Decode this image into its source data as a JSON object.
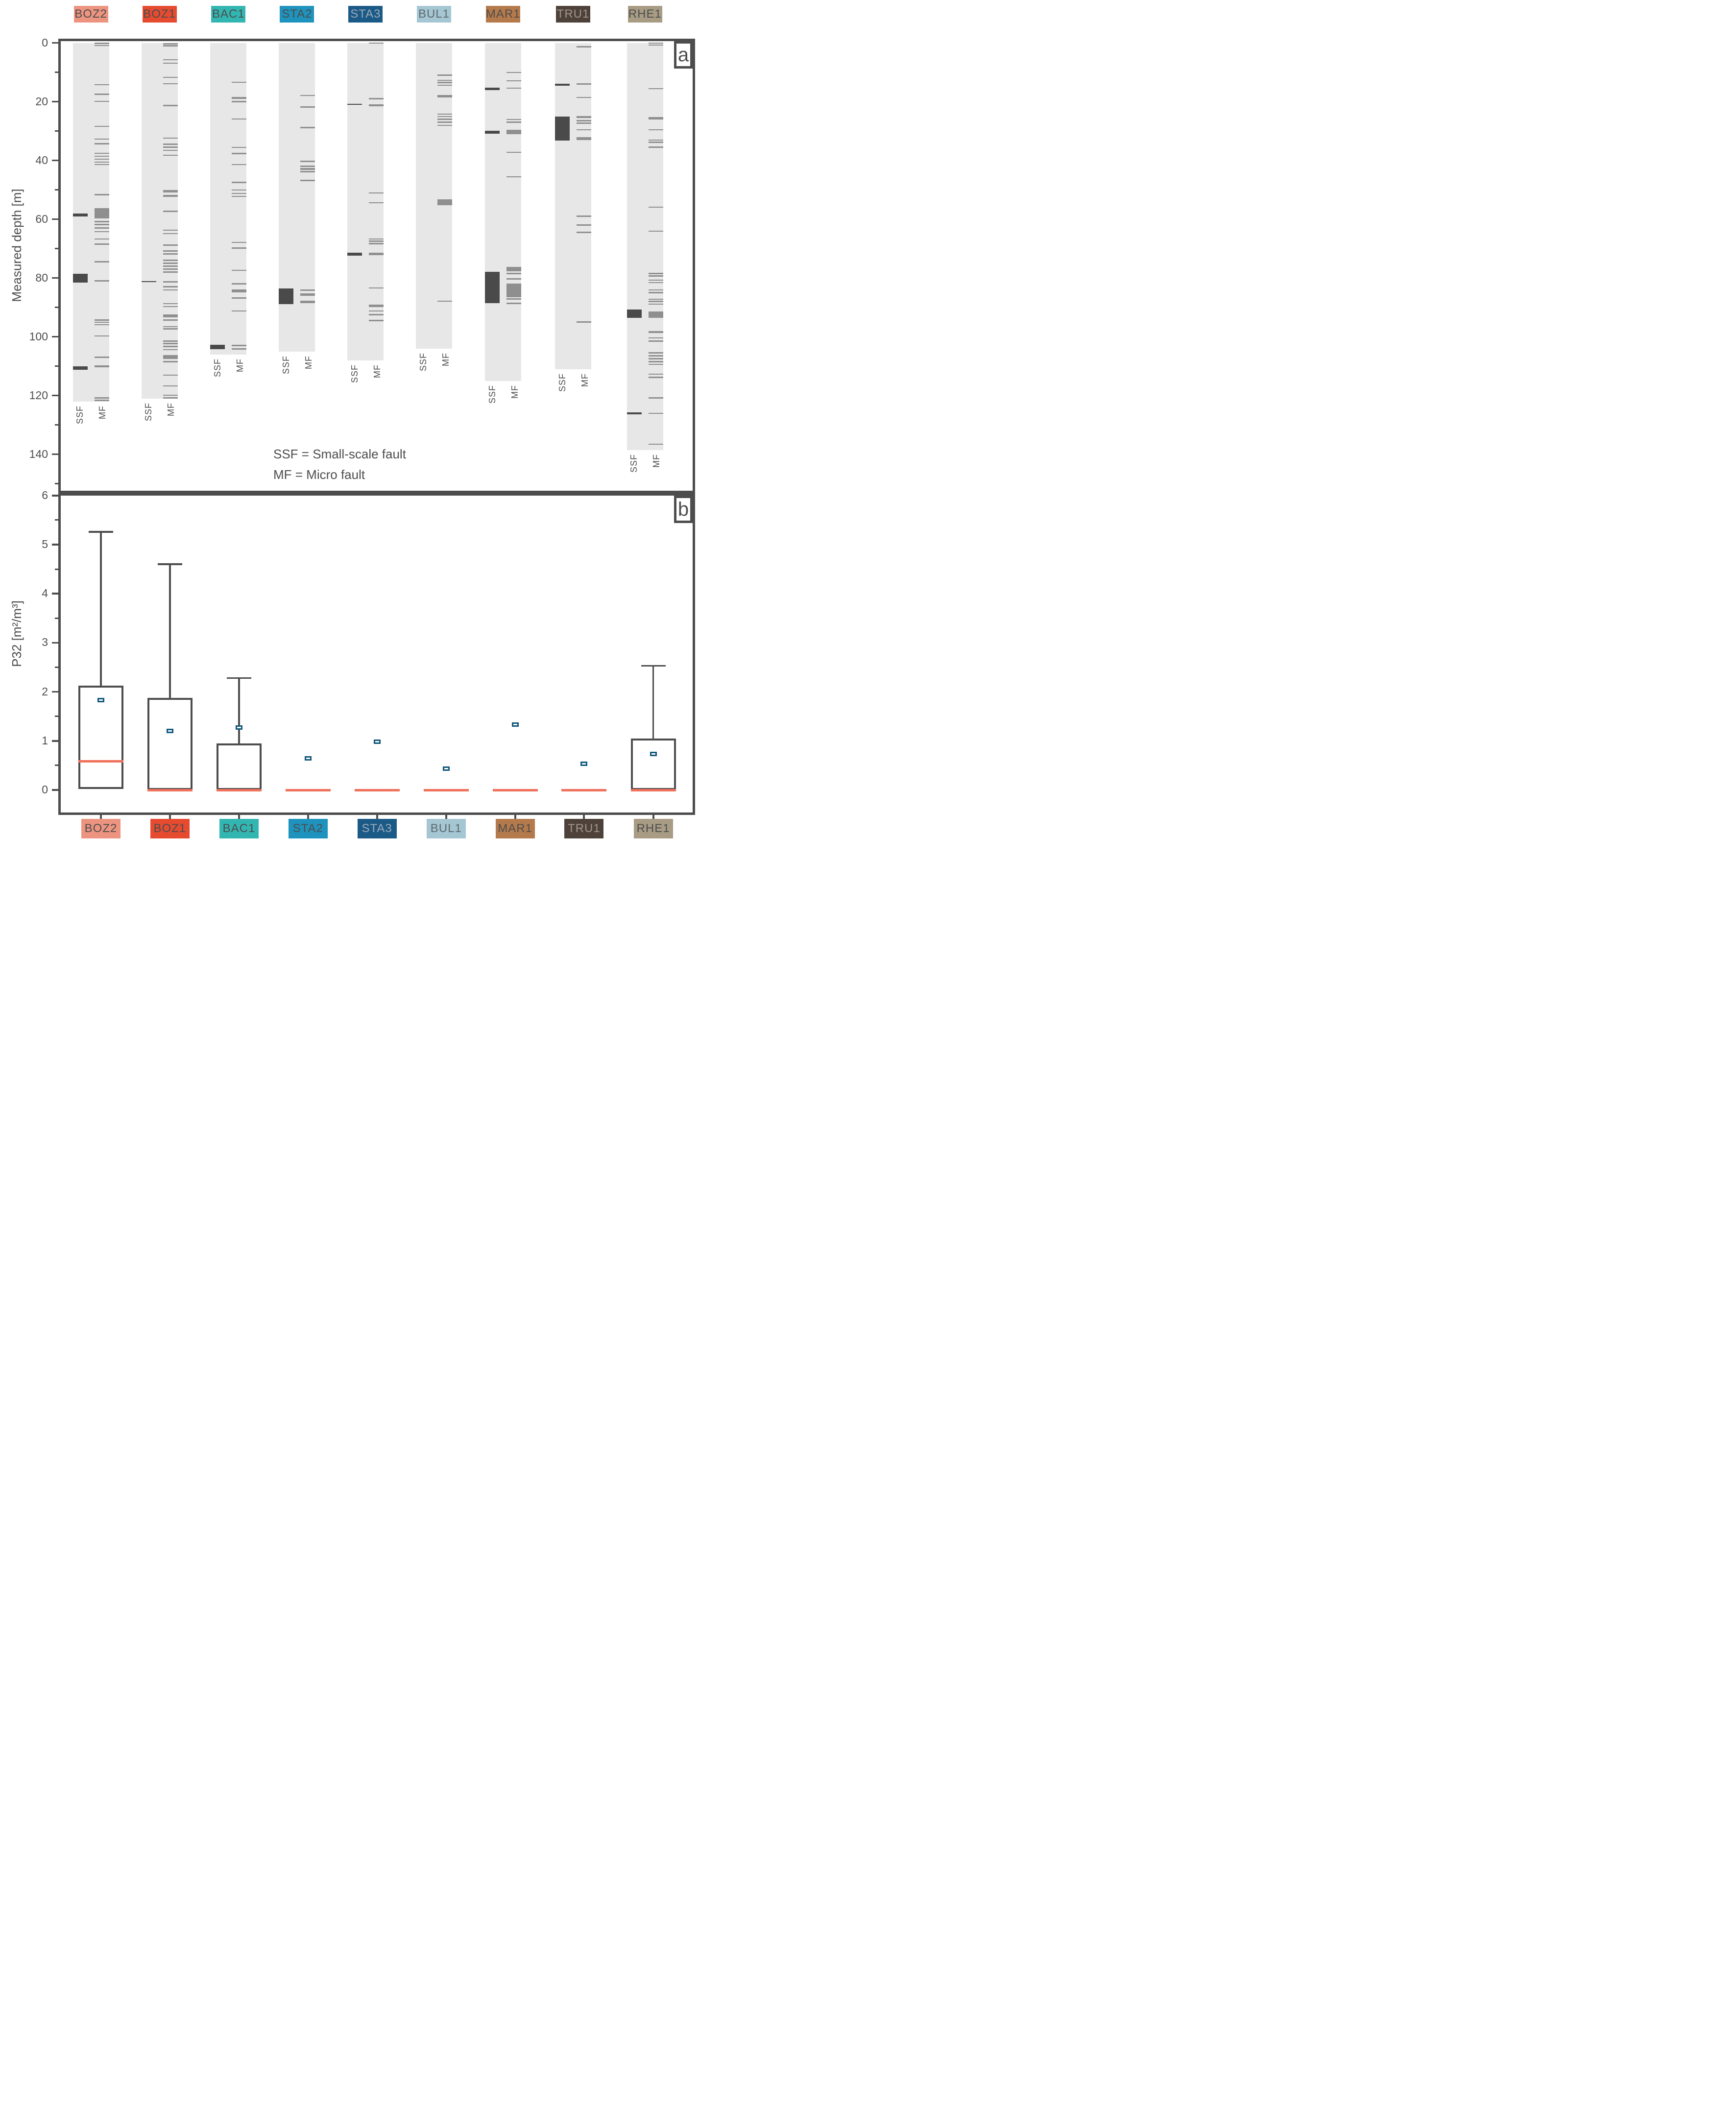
{
  "figure": {
    "background": "#ffffff",
    "text_color": "#4d4d4d",
    "frame_color": "#4d4d4d",
    "strip_color": "#e7e7e7",
    "ssf_mark_color": "#4a4a4a",
    "mf_mark_color": "#8f8f8f",
    "median_color": "#f0715c",
    "mean_marker_color": "#12587c"
  },
  "chart_data": [
    {
      "type": "fault-log",
      "panel_label": "a",
      "ylabel": "Measured depth [m]",
      "ylim": [
        0,
        152
      ],
      "yticks": [
        0,
        20,
        40,
        60,
        80,
        100,
        120,
        140
      ],
      "yticks_minor": [
        10,
        30,
        50,
        70,
        90,
        110,
        130,
        150
      ],
      "column_labels": [
        "SSF",
        "MF"
      ],
      "legend": [
        "SSF = Small-scale fault",
        "MF = Micro fault"
      ],
      "boreholes": [
        {
          "name": "BOZ2",
          "color": "#ED9480",
          "label_text_color": "#4d4d4d",
          "depth_range": [
            0,
            122
          ],
          "ssf": [
            [
              58.5,
              1.0
            ],
            [
              80.0,
              3.0
            ],
            [
              110.6,
              1.2
            ]
          ],
          "mf": [
            [
              0.2,
              0.5
            ],
            [
              0.9,
              0.4
            ],
            [
              14.2,
              0.4
            ],
            [
              17.5,
              0.4
            ],
            [
              19.9,
              0.4
            ],
            [
              28.4,
              0.4
            ],
            [
              32.7,
              0.4
            ],
            [
              34.3,
              0.4
            ],
            [
              37.6,
              0.4
            ],
            [
              38.6,
              0.4
            ],
            [
              39.6,
              0.4
            ],
            [
              40.6,
              0.4
            ],
            [
              41.4,
              0.4
            ],
            [
              51.6,
              0.5
            ],
            [
              58.0,
              3.5
            ],
            [
              60.8,
              0.5
            ],
            [
              61.8,
              0.5
            ],
            [
              62.9,
              0.5
            ],
            [
              64.2,
              0.4
            ],
            [
              66.7,
              0.4
            ],
            [
              68.5,
              0.4
            ],
            [
              74.4,
              0.5
            ],
            [
              81.0,
              0.5
            ],
            [
              94.3,
              0.4
            ],
            [
              95.1,
              0.4
            ],
            [
              95.9,
              0.4
            ],
            [
              99.7,
              0.4
            ],
            [
              107.0,
              0.4
            ],
            [
              110.1,
              0.7
            ],
            [
              120.8,
              0.5
            ],
            [
              121.6,
              0.5
            ]
          ]
        },
        {
          "name": "BOZ1",
          "color": "#E64B30",
          "label_text_color": "#4d4d4d",
          "depth_range": [
            0,
            121
          ],
          "ssf": [
            [
              81.2,
              0.4
            ]
          ],
          "mf": [
            [
              0.3,
              0.6
            ],
            [
              1.0,
              0.4
            ],
            [
              5.7,
              0.4
            ],
            [
              6.9,
              0.4
            ],
            [
              11.7,
              0.4
            ],
            [
              13.9,
              0.4
            ],
            [
              21.3,
              0.4
            ],
            [
              32.4,
              0.4
            ],
            [
              34.4,
              0.5
            ],
            [
              35.5,
              0.4
            ],
            [
              36.6,
              0.4
            ],
            [
              38.2,
              0.4
            ],
            [
              50.5,
              0.8
            ],
            [
              52.1,
              0.7
            ],
            [
              57.3,
              0.4
            ],
            [
              63.7,
              0.4
            ],
            [
              64.9,
              0.4
            ],
            [
              68.8,
              0.4
            ],
            [
              70.8,
              0.4
            ],
            [
              71.8,
              0.4
            ],
            [
              74.0,
              0.6
            ],
            [
              75.0,
              0.6
            ],
            [
              76.0,
              0.6
            ],
            [
              77.0,
              0.6
            ],
            [
              78.0,
              0.4
            ],
            [
              81.3,
              0.4
            ],
            [
              83.0,
              0.4
            ],
            [
              84.1,
              0.4
            ],
            [
              88.7,
              0.4
            ],
            [
              89.7,
              0.4
            ],
            [
              92.9,
              1.1
            ],
            [
              94.3,
              0.6
            ],
            [
              96.6,
              0.4
            ],
            [
              97.3,
              0.4
            ],
            [
              101.4,
              0.5
            ],
            [
              102.3,
              0.4
            ],
            [
              103.3,
              0.4
            ],
            [
              104.4,
              0.4
            ],
            [
              106.9,
              1.2
            ],
            [
              108.5,
              0.6
            ],
            [
              113.1,
              0.4
            ],
            [
              116.7,
              0.4
            ],
            [
              119.9,
              0.4
            ],
            [
              120.8,
              0.4
            ]
          ]
        },
        {
          "name": "BAC1",
          "color": "#32B6B2",
          "label_text_color": "#4d4d4d",
          "depth_range": [
            0,
            106
          ],
          "ssf": [
            [
              103.4,
              1.5
            ]
          ],
          "mf": [
            [
              13.4,
              0.4
            ],
            [
              18.8,
              0.7
            ],
            [
              20.0,
              0.4
            ],
            [
              25.9,
              0.4
            ],
            [
              35.6,
              0.4
            ],
            [
              37.7,
              0.5
            ],
            [
              41.4,
              0.4
            ],
            [
              47.5,
              0.4
            ],
            [
              50.1,
              0.4
            ],
            [
              51.2,
              0.4
            ],
            [
              52.2,
              0.4
            ],
            [
              67.9,
              0.4
            ],
            [
              69.8,
              0.4
            ],
            [
              77.4,
              0.4
            ],
            [
              82.0,
              0.4
            ],
            [
              84.4,
              0.9
            ],
            [
              86.8,
              0.4
            ],
            [
              91.2,
              0.4
            ],
            [
              103.0,
              0.6
            ],
            [
              104.1,
              0.5
            ]
          ]
        },
        {
          "name": "STA2",
          "color": "#1E93BE",
          "label_text_color": "#4d4d4d",
          "depth_range": [
            0,
            105
          ],
          "ssf": [
            [
              86.2,
              5.4
            ]
          ],
          "mf": [
            [
              17.9,
              0.4
            ],
            [
              21.8,
              0.6
            ],
            [
              28.8,
              0.4
            ],
            [
              40.3,
              0.4
            ],
            [
              42.0,
              0.4
            ],
            [
              42.9,
              0.6
            ],
            [
              43.8,
              0.4
            ],
            [
              46.8,
              0.4
            ],
            [
              84.1,
              0.5
            ],
            [
              85.6,
              0.8
            ],
            [
              88.2,
              0.9
            ]
          ]
        },
        {
          "name": "STA3",
          "color": "#1B5A87",
          "label_text_color": "#9AAAB8",
          "depth_range": [
            0,
            108
          ],
          "ssf": [
            [
              20.9,
              0.4
            ],
            [
              71.9,
              0.9
            ]
          ],
          "mf": [
            [
              0.1,
              0.4
            ],
            [
              19.0,
              0.4
            ],
            [
              21.2,
              0.7
            ],
            [
              51.1,
              0.4
            ],
            [
              54.4,
              0.4
            ],
            [
              66.7,
              0.4
            ],
            [
              67.5,
              0.4
            ],
            [
              68.3,
              0.4
            ],
            [
              71.8,
              0.9
            ],
            [
              83.4,
              0.4
            ],
            [
              89.5,
              0.8
            ],
            [
              91.2,
              0.4
            ],
            [
              92.5,
              0.4
            ],
            [
              94.5,
              0.4
            ]
          ]
        },
        {
          "name": "BUL1",
          "color": "#A5C6D3",
          "label_text_color": "#5d6a70",
          "depth_range": [
            0,
            104
          ],
          "ssf": [],
          "mf": [
            [
              11.0,
              0.4
            ],
            [
              12.7,
              0.4
            ],
            [
              13.5,
              0.4
            ],
            [
              14.4,
              0.4
            ],
            [
              18.1,
              0.8
            ],
            [
              24.2,
              0.4
            ],
            [
              25.1,
              0.4
            ],
            [
              26.0,
              0.4
            ],
            [
              27.0,
              0.4
            ],
            [
              28.1,
              0.4
            ],
            [
              54.2,
              2.1
            ],
            [
              87.9,
              0.4
            ]
          ]
        },
        {
          "name": "MAR1",
          "color": "#B57A4B",
          "label_text_color": "#4d4d4d",
          "depth_range": [
            0,
            115
          ],
          "ssf": [
            [
              15.6,
              0.8
            ],
            [
              30.4,
              1.1
            ],
            [
              83.2,
              10.7
            ]
          ],
          "mf": [
            [
              10.1,
              0.4
            ],
            [
              12.9,
              0.4
            ],
            [
              15.4,
              0.4
            ],
            [
              26.1,
              0.4
            ],
            [
              27.0,
              0.4
            ],
            [
              30.3,
              1.6
            ],
            [
              37.2,
              0.4
            ],
            [
              45.6,
              0.4
            ],
            [
              77.0,
              1.5
            ],
            [
              78.5,
              0.4
            ],
            [
              80.3,
              0.4
            ],
            [
              84.2,
              4.7
            ],
            [
              87.2,
              0.5
            ],
            [
              88.6,
              0.5
            ]
          ]
        },
        {
          "name": "TRU1",
          "color": "#4D4139",
          "label_text_color": "#A1968D",
          "depth_range": [
            0,
            111
          ],
          "ssf": [
            [
              14.3,
              0.7
            ],
            [
              29.1,
              8.2
            ]
          ],
          "mf": [
            [
              1.3,
              0.4
            ],
            [
              13.9,
              0.5
            ],
            [
              18.6,
              0.4
            ],
            [
              25.3,
              0.7
            ],
            [
              26.4,
              0.5
            ],
            [
              27.3,
              0.4
            ],
            [
              29.6,
              0.4
            ],
            [
              32.6,
              1.1
            ],
            [
              59.0,
              0.4
            ],
            [
              62.0,
              0.4
            ],
            [
              64.4,
              0.5
            ],
            [
              95.0,
              0.4
            ]
          ]
        },
        {
          "name": "RHE1",
          "color": "#A89C85",
          "label_text_color": "#4d4d4d",
          "depth_range": [
            0,
            138.5
          ],
          "ssf": [
            [
              92.2,
              2.9
            ],
            [
              126.1,
              0.6
            ]
          ],
          "mf": [
            [
              0.1,
              0.4
            ],
            [
              0.7,
              0.4
            ],
            [
              15.6,
              0.4
            ],
            [
              25.6,
              0.8
            ],
            [
              29.6,
              0.4
            ],
            [
              33.1,
              0.4
            ],
            [
              33.8,
              0.4
            ],
            [
              35.5,
              0.4
            ],
            [
              55.9,
              0.4
            ],
            [
              64.1,
              0.4
            ],
            [
              78.5,
              0.4
            ],
            [
              79.3,
              0.4
            ],
            [
              80.7,
              0.4
            ],
            [
              81.6,
              0.4
            ],
            [
              84.1,
              0.4
            ],
            [
              85.0,
              0.4
            ],
            [
              87.2,
              0.4
            ],
            [
              88.0,
              0.4
            ],
            [
              88.9,
              0.4
            ],
            [
              92.5,
              2.3
            ],
            [
              98.4,
              0.7
            ],
            [
              100.4,
              0.4
            ],
            [
              101.5,
              0.4
            ],
            [
              105.5,
              0.4
            ],
            [
              106.5,
              0.4
            ],
            [
              107.5,
              0.4
            ],
            [
              108.5,
              0.4
            ],
            [
              109.4,
              0.4
            ],
            [
              112.7,
              0.4
            ],
            [
              113.8,
              0.4
            ],
            [
              120.8,
              0.4
            ],
            [
              126.1,
              0.4
            ],
            [
              136.6,
              0.4
            ]
          ]
        }
      ]
    },
    {
      "type": "box",
      "panel_label": "b",
      "ylabel": "P32 [m²/m³]",
      "ylim": [
        -0.55,
        6
      ],
      "yticks": [
        0,
        1,
        2,
        3,
        4,
        5,
        6
      ],
      "yticks_minor": [
        0.5,
        1.5,
        2.5,
        3.5,
        4.5,
        5.5
      ],
      "series": [
        {
          "name": "BOZ2",
          "color": "#ED9480",
          "label_text_color": "#4d4d4d",
          "q1": 0.02,
          "q3": 2.13,
          "median": 0.58,
          "mean": 1.83,
          "whisker_high": 5.26,
          "whisker_low": null
        },
        {
          "name": "BOZ1",
          "color": "#E64B30",
          "label_text_color": "#4d4d4d",
          "q1": 0.0,
          "q3": 1.88,
          "median": 0.0,
          "mean": 1.2,
          "whisker_high": 4.6,
          "whisker_low": null
        },
        {
          "name": "BAC1",
          "color": "#32B6B2",
          "label_text_color": "#4d4d4d",
          "q1": 0.0,
          "q3": 0.95,
          "median": 0.0,
          "mean": 1.27,
          "whisker_high": 2.28,
          "whisker_low": null
        },
        {
          "name": "STA2",
          "color": "#1E93BE",
          "label_text_color": "#4d4d4d",
          "q1": 0.0,
          "q3": 0.0,
          "median": 0.0,
          "mean": 0.64,
          "whisker_high": null,
          "whisker_low": null
        },
        {
          "name": "STA3",
          "color": "#1B5A87",
          "label_text_color": "#9AAAB8",
          "q1": 0.0,
          "q3": 0.0,
          "median": 0.0,
          "mean": 0.98,
          "whisker_high": null,
          "whisker_low": null
        },
        {
          "name": "BUL1",
          "color": "#A5C6D3",
          "label_text_color": "#5d6a70",
          "q1": 0.0,
          "q3": 0.0,
          "median": 0.0,
          "mean": 0.43,
          "whisker_high": null,
          "whisker_low": null
        },
        {
          "name": "MAR1",
          "color": "#B57A4B",
          "label_text_color": "#4d4d4d",
          "q1": 0.0,
          "q3": 0.0,
          "median": 0.0,
          "mean": 1.33,
          "whisker_high": null,
          "whisker_low": null
        },
        {
          "name": "TRU1",
          "color": "#4D4139",
          "label_text_color": "#A1968D",
          "q1": 0.0,
          "q3": 0.0,
          "median": 0.0,
          "mean": 0.53,
          "whisker_high": null,
          "whisker_low": null
        },
        {
          "name": "RHE1",
          "color": "#A89C85",
          "label_text_color": "#4d4d4d",
          "q1": 0.0,
          "q3": 1.05,
          "median": 0.0,
          "mean": 0.73,
          "whisker_high": 2.53,
          "whisker_low": null
        }
      ]
    }
  ]
}
